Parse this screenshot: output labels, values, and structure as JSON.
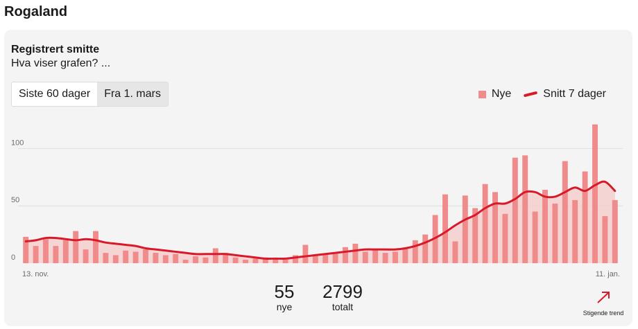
{
  "header": {
    "title": "Rogaland"
  },
  "card": {
    "title": "Registrert smitte",
    "subtitle": "Hva viser grafen? ..."
  },
  "toggle": {
    "options": [
      "Siste 60 dager",
      "Fra 1. mars"
    ],
    "selected": "Siste 60 dager"
  },
  "colors": {
    "bar": "#f08b8b",
    "line": "#d7192a",
    "area": "#f6c9c9",
    "grid": "#dddddd"
  },
  "chart_data": {
    "type": "bar",
    "title": "",
    "xlabel": "",
    "ylabel": "",
    "ylim": [
      0,
      125
    ],
    "yticks": [
      0,
      50,
      100
    ],
    "x_start_label": "13. nov.",
    "x_end_label": "11. jan.",
    "legend": {
      "placement": "top-right"
    },
    "series": [
      {
        "name": "Nye",
        "kind": "bar",
        "values": [
          23,
          15,
          21,
          15,
          20,
          28,
          12,
          28,
          9,
          7,
          11,
          10,
          12,
          9,
          7,
          8,
          3,
          6,
          5,
          13,
          9,
          5,
          3,
          4,
          5,
          4,
          3,
          7,
          16,
          7,
          8,
          9,
          14,
          17,
          10,
          12,
          9,
          10,
          13,
          20,
          25,
          42,
          60,
          19,
          59,
          48,
          69,
          62,
          43,
          92,
          94,
          45,
          64,
          52,
          89,
          55,
          80,
          121,
          41,
          55
        ]
      },
      {
        "name": "Snitt 7 dager",
        "kind": "line",
        "values": [
          19,
          20,
          22,
          22,
          21,
          20,
          21,
          20,
          18,
          17,
          16,
          15,
          13,
          12,
          11,
          10,
          9,
          8,
          8,
          8,
          8,
          7,
          6,
          5,
          4,
          4,
          4,
          5,
          6,
          7,
          8,
          9,
          10,
          11,
          12,
          12,
          12,
          12,
          13,
          15,
          18,
          22,
          27,
          33,
          38,
          42,
          48,
          52,
          52,
          56,
          62,
          62,
          58,
          58,
          62,
          66,
          63,
          68,
          71,
          63
        ]
      }
    ]
  },
  "stats": {
    "new_value": "55",
    "new_label": "nye",
    "total_value": "2799",
    "total_label": "totalt"
  },
  "trend": {
    "icon": "arrow-up-right-icon",
    "label": "Stigende trend"
  }
}
